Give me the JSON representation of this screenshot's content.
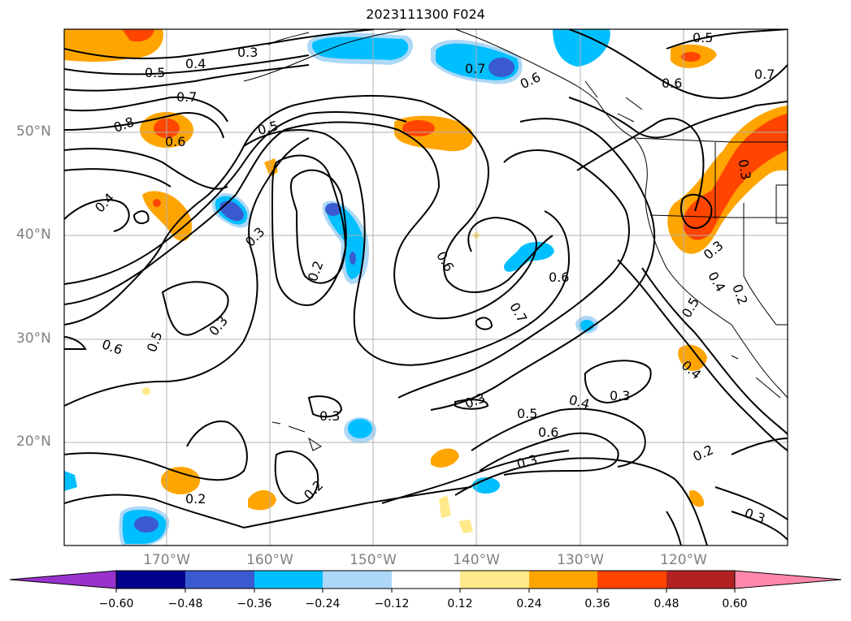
{
  "title": "2023111300 F024",
  "lat_labels": [
    "50°N",
    "40°N",
    "30°N",
    "20°N"
  ],
  "lon_labels": [
    "170°W",
    "160°W",
    "150°W",
    "140°W",
    "130°W",
    "120°W"
  ],
  "colorbar": {
    "ticks": [
      "−0.60",
      "−0.48",
      "−0.36",
      "−0.24",
      "−0.12",
      "0.12",
      "0.24",
      "0.36",
      "0.48",
      "0.60"
    ],
    "colors": [
      "#9932cc",
      "#00008b",
      "#3a5bd0",
      "#00bfff",
      "#add8f7",
      "#ffffff",
      "#ffe98a",
      "#ffa500",
      "#ff4500",
      "#b22222",
      "#ff88aa"
    ]
  },
  "contour_labels": [
    "0.3",
    "0.4",
    "0.5",
    "0.7",
    "0.8",
    "0.6",
    "0.5",
    "0.7",
    "0.6",
    "0.5",
    "0.6",
    "0.7",
    "0.4",
    "0.3",
    "0.2",
    "0.6",
    "0.3",
    "0.6",
    "0.5",
    "0.3",
    "0.7",
    "0.6",
    "0.3",
    "0.3",
    "0.5",
    "0.4",
    "0.3",
    "0.6",
    "0.3",
    "0.2",
    "0.2",
    "0.2",
    "0.3",
    "0.4",
    "0.5",
    "0.4",
    "0.3",
    "0.2"
  ]
}
